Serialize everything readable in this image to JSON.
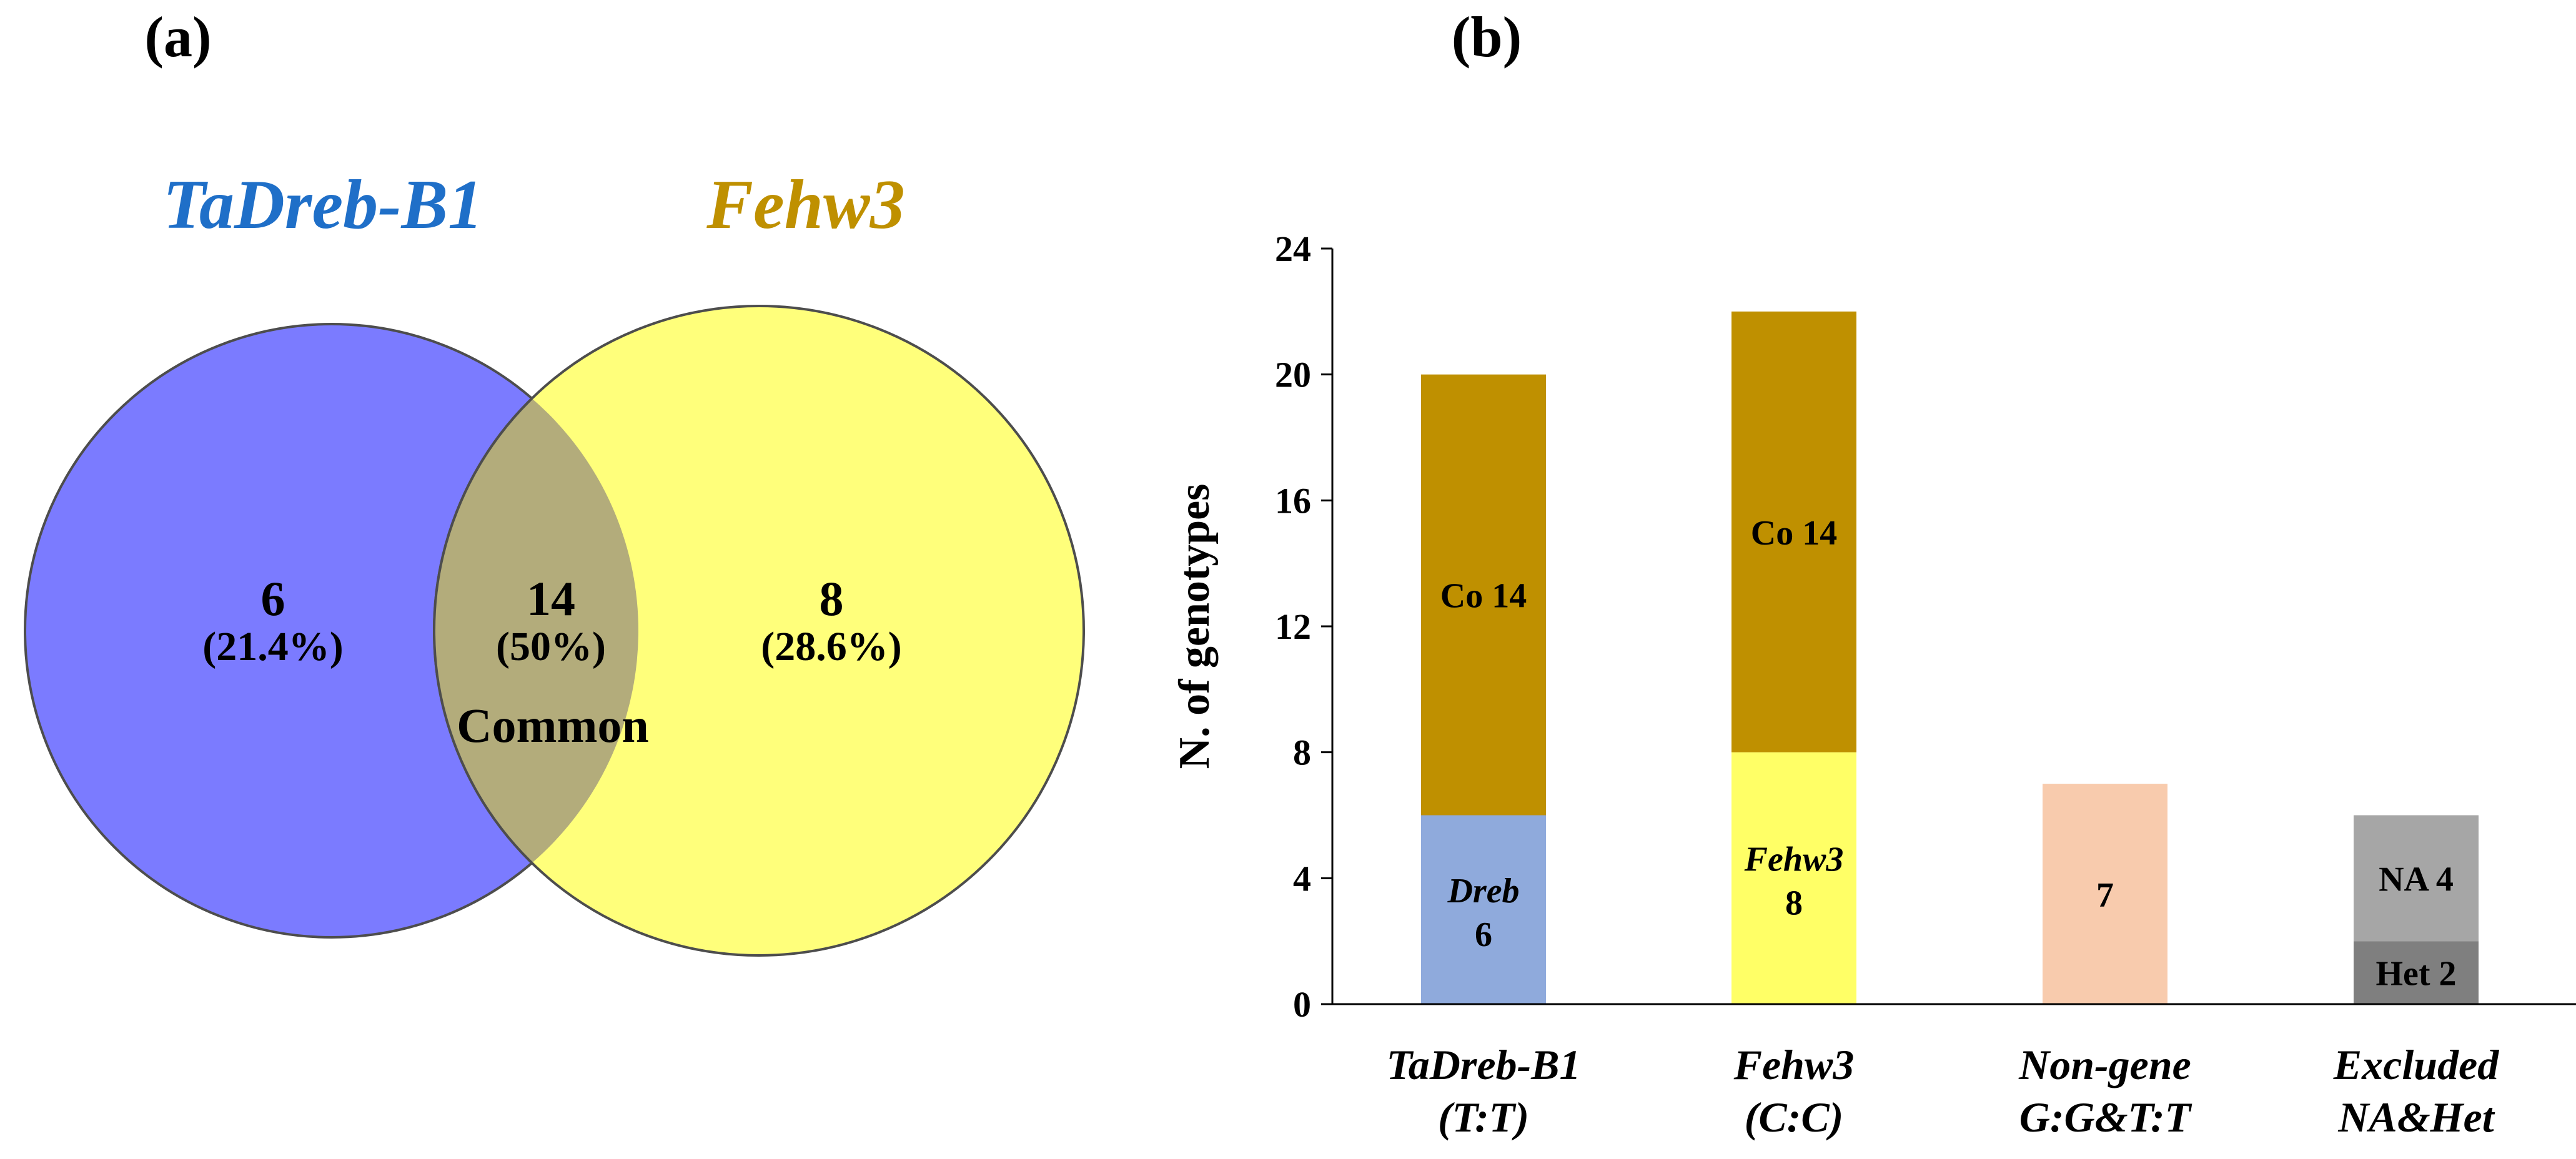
{
  "panel_a": {
    "label": "(a)",
    "set_left": {
      "name": "TaDreb-B1",
      "count": "6",
      "percent": "(21.4%)",
      "color": "#7b7bff",
      "title_color": "#1f6fc8"
    },
    "set_right": {
      "name": "Fehw3",
      "count": "8",
      "percent": "(28.6%)",
      "color": "#ffff7b",
      "title_color": "#bf9000"
    },
    "overlap": {
      "count": "14",
      "percent": "(50%)",
      "label": "Common",
      "color": "#b3ac7b"
    }
  },
  "panel_b": {
    "label": "(b)"
  },
  "chart_data": {
    "type": "bar",
    "stacked": true,
    "ylabel": "N. of genotypes",
    "xlabel": "",
    "ylim": [
      0,
      24
    ],
    "yticks": [
      0,
      4,
      8,
      12,
      16,
      20,
      24
    ],
    "categories": [
      {
        "line1": "TaDreb-B1",
        "line2": "(T:T)"
      },
      {
        "line1": "Fehw3",
        "line2": "(C:C)"
      },
      {
        "line1": "Non-gene",
        "line2": "G:G&T:T"
      },
      {
        "line1": "Excluded",
        "line2": "NA&Het"
      }
    ],
    "segments": [
      {
        "category": 0,
        "base": 0,
        "value": 6,
        "color": "#8faadc",
        "label_line1": "Dreb",
        "label_line2": "6",
        "italic_line1": true
      },
      {
        "category": 0,
        "base": 6,
        "value": 14,
        "color": "#bf9000",
        "label_line1": "Co 14",
        "label_line2": "",
        "italic_line1": false
      },
      {
        "category": 1,
        "base": 0,
        "value": 8,
        "color": "#ffff66",
        "label_line1": "Fehw3",
        "label_line2": "8",
        "italic_line1": true
      },
      {
        "category": 1,
        "base": 8,
        "value": 14,
        "color": "#bf9000",
        "label_line1": "Co 14",
        "label_line2": "",
        "italic_line1": false
      },
      {
        "category": 2,
        "base": 0,
        "value": 7,
        "color": "#f8cbad",
        "label_line1": "7",
        "label_line2": "",
        "italic_line1": false
      },
      {
        "category": 3,
        "base": 0,
        "value": 2,
        "color": "#7f7f7f",
        "label_line1": "Het 2",
        "label_line2": "",
        "italic_line1": false
      },
      {
        "category": 3,
        "base": 2,
        "value": 4,
        "color": "#a6a6a6",
        "label_line1": "NA 4",
        "label_line2": "",
        "italic_line1": false
      }
    ]
  }
}
